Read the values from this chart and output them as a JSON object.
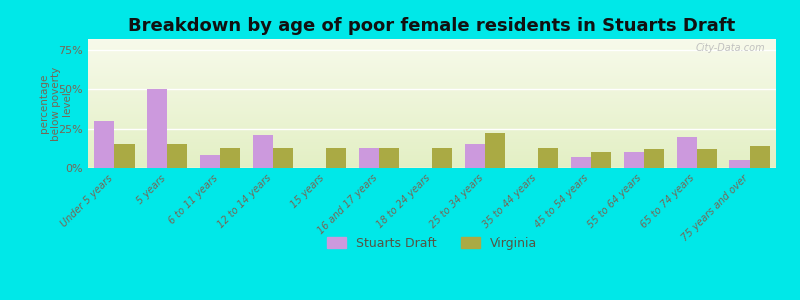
{
  "title": "Breakdown by age of poor female residents in Stuarts Draft",
  "ylabel": "percentage\nbelow poverty\nlevel",
  "categories": [
    "Under 5 years",
    "5 years",
    "6 to 11 years",
    "12 to 14 years",
    "15 years",
    "16 and 17 years",
    "18 to 24 years",
    "25 to 34 years",
    "35 to 44 years",
    "45 to 54 years",
    "55 to 64 years",
    "65 to 74 years",
    "75 years and over"
  ],
  "stuarts_draft": [
    30,
    50,
    8,
    21,
    0,
    13,
    0,
    15,
    0,
    7,
    10,
    20,
    5
  ],
  "virginia": [
    15,
    15,
    13,
    13,
    13,
    13,
    13,
    22,
    13,
    10,
    12,
    12,
    14
  ],
  "bar_color_sd": "#cc99dd",
  "bar_color_va": "#aaaa44",
  "background_outer": "#00e8e8",
  "yticks": [
    0,
    25,
    50,
    75
  ],
  "ylim": [
    0,
    82
  ],
  "bar_width": 0.38,
  "legend_sd": "Stuarts Draft",
  "legend_va": "Virginia",
  "watermark": "City-Data.com",
  "title_fontsize": 13,
  "tick_fontsize": 7,
  "ylabel_fontsize": 7.5
}
